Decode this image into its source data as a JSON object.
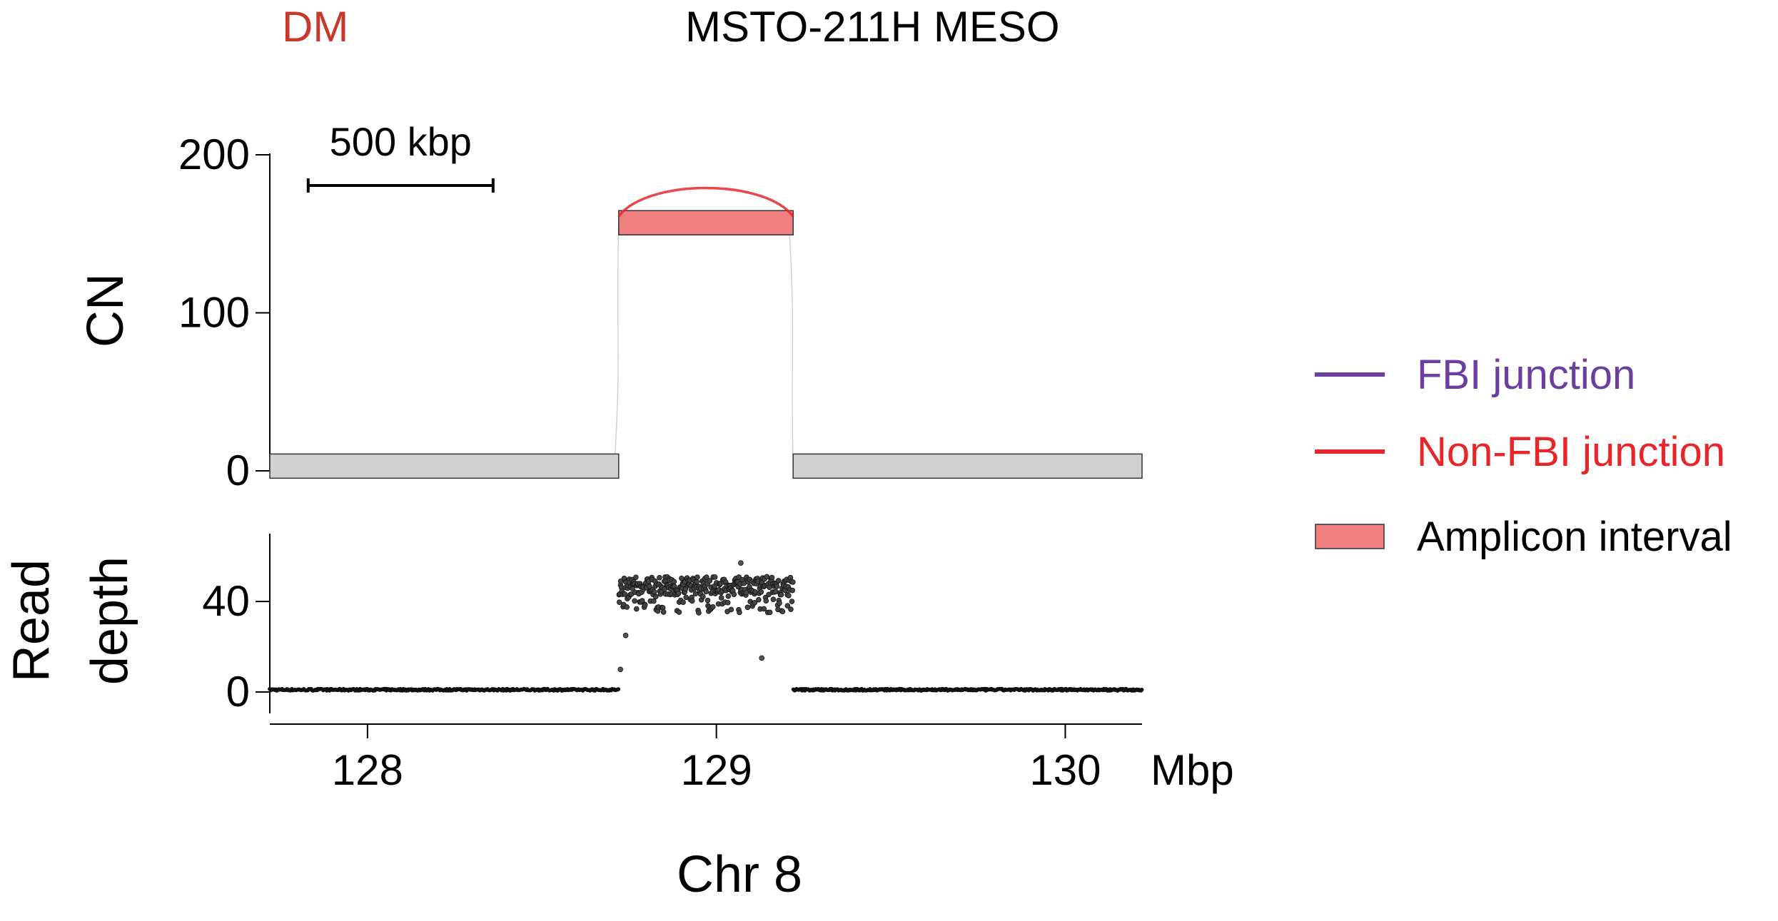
{
  "figure": {
    "tag": "DM",
    "title": "MSTO-211H MESO",
    "xlabel": "Chr 8",
    "x_unit": "Mbp",
    "scale_bar_label": "500 kbp",
    "colors": {
      "tag": "#c8392b",
      "fbi": "#6b3fa0",
      "non_fbi": "#e8262a",
      "amplicon": "#f08080",
      "segment": "#d0d0d0",
      "points": "#111111"
    }
  },
  "legend": {
    "items": [
      {
        "label": "FBI junction",
        "kind": "line",
        "color_key": "fbi"
      },
      {
        "label": "Non-FBI junction",
        "kind": "line",
        "color_key": "non_fbi"
      },
      {
        "label": "Amplicon interval",
        "kind": "box",
        "color_key": "amplicon"
      }
    ]
  },
  "chart_data": [
    {
      "type": "bar",
      "panel": "cn",
      "ylabel": "CN",
      "xlim": [
        127.72,
        130.22
      ],
      "ylim": [
        0,
        200
      ],
      "yticks": [
        0,
        100,
        200
      ],
      "scale_bar": {
        "start": 127.83,
        "end": 128.36,
        "cn": 180
      },
      "segments": [
        {
          "start": 127.72,
          "end": 128.72,
          "cn": 3,
          "amplicon": false
        },
        {
          "start": 128.72,
          "end": 129.22,
          "cn": 157,
          "amplicon": true
        },
        {
          "start": 129.22,
          "end": 130.22,
          "cn": 3,
          "amplicon": false
        }
      ],
      "junctions": [
        {
          "start": 128.72,
          "end": 129.22,
          "type": "non_fbi"
        }
      ]
    },
    {
      "type": "scatter",
      "panel": "depth",
      "ylabel": "Read depth",
      "xlim": [
        127.72,
        130.22
      ],
      "ylim": [
        0,
        70
      ],
      "yticks": [
        0,
        40
      ],
      "xticks": [
        128,
        129,
        130
      ],
      "points_description_series": [
        {
          "start": 127.72,
          "end": 128.72,
          "level": 1
        },
        {
          "start": 128.72,
          "end": 129.22,
          "level": 47
        },
        {
          "start": 129.22,
          "end": 130.22,
          "level": 1
        }
      ],
      "outliers": [
        {
          "x": 128.725,
          "y": 10
        },
        {
          "x": 128.74,
          "y": 25
        },
        {
          "x": 129.13,
          "y": 15
        },
        {
          "x": 129.07,
          "y": 57
        }
      ]
    }
  ]
}
